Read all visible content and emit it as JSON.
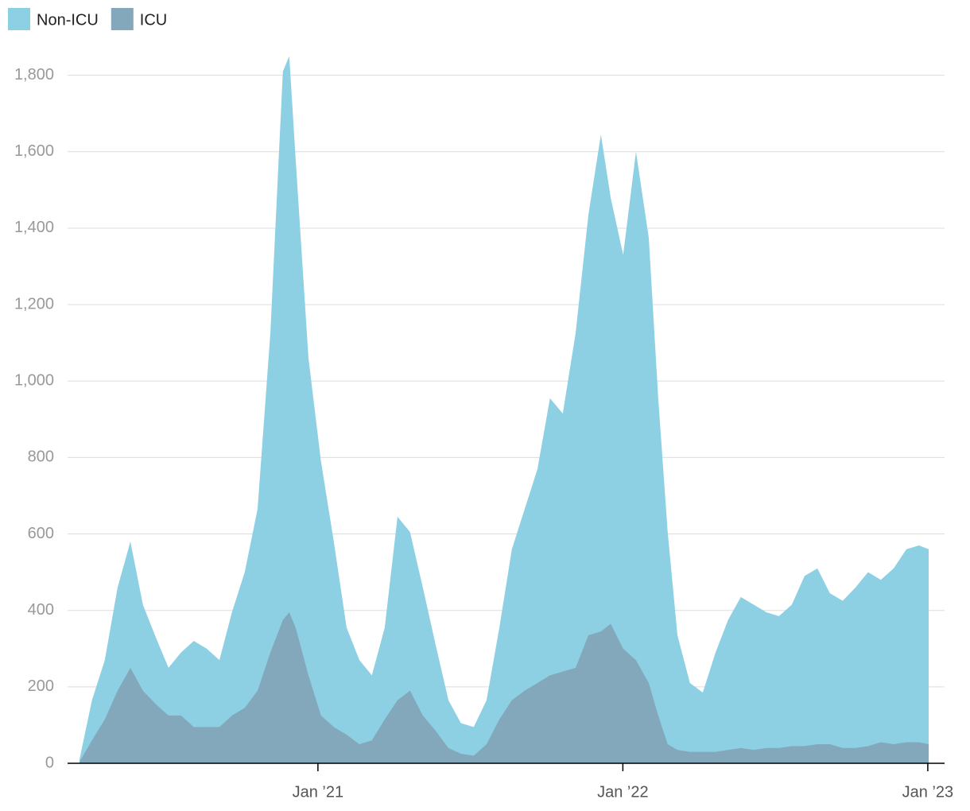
{
  "chart_data": {
    "type": "area",
    "x": [
      2020.218,
      2020.259,
      2020.301,
      2020.343,
      2020.385,
      2020.426,
      2020.468,
      2020.51,
      2020.551,
      2020.593,
      2020.635,
      2020.677,
      2020.718,
      2020.76,
      2020.802,
      2020.844,
      2020.885,
      2020.906,
      2020.927,
      2020.969,
      2021.01,
      2021.052,
      2021.094,
      2021.136,
      2021.177,
      2021.219,
      2021.261,
      2021.302,
      2021.344,
      2021.386,
      2021.428,
      2021.469,
      2021.511,
      2021.553,
      2021.595,
      2021.636,
      2021.678,
      2021.72,
      2021.761,
      2021.803,
      2021.845,
      2021.887,
      2021.928,
      2021.96,
      2022.001,
      2022.043,
      2022.085,
      2022.116,
      2022.147,
      2022.179,
      2022.22,
      2022.262,
      2022.304,
      2022.345,
      2022.387,
      2022.429,
      2022.471,
      2022.512,
      2022.554,
      2022.596,
      2022.638,
      2022.679,
      2022.721,
      2022.763,
      2022.804,
      2022.846,
      2022.888,
      2022.93,
      2022.971,
      2023.003
    ],
    "series": [
      {
        "name": "Non-ICU",
        "color": "#8dd0e4",
        "values": [
          10,
          165,
          270,
          460,
          580,
          415,
          330,
          250,
          290,
          320,
          300,
          270,
          395,
          500,
          665,
          1125,
          1810,
          1850,
          1580,
          1060,
          790,
          580,
          355,
          270,
          230,
          355,
          645,
          605,
          460,
          310,
          165,
          105,
          95,
          165,
          355,
          560,
          665,
          770,
          955,
          915,
          1125,
          1435,
          1645,
          1480,
          1330,
          1600,
          1375,
          955,
          605,
          335,
          210,
          185,
          290,
          375,
          435,
          415,
          395,
          385,
          415,
          490,
          510,
          445,
          425,
          460,
          500,
          480,
          510,
          560,
          570,
          560
        ]
      },
      {
        "name": "ICU",
        "color": "#84a8bb",
        "values": [
          4,
          60,
          115,
          190,
          250,
          190,
          155,
          125,
          125,
          95,
          95,
          95,
          125,
          145,
          190,
          290,
          375,
          395,
          355,
          230,
          125,
          95,
          75,
          50,
          60,
          115,
          165,
          190,
          125,
          85,
          40,
          25,
          20,
          50,
          115,
          165,
          190,
          210,
          230,
          240,
          250,
          335,
          345,
          365,
          300,
          270,
          210,
          125,
          50,
          35,
          30,
          30,
          30,
          35,
          40,
          35,
          40,
          40,
          45,
          45,
          50,
          50,
          40,
          40,
          45,
          55,
          50,
          55,
          55,
          50
        ]
      }
    ],
    "xlim": [
      2020.179,
      2023.055
    ],
    "xticks": [
      {
        "value": 2021,
        "label": "Jan ’21"
      },
      {
        "value": 2022,
        "label": "Jan ’22"
      },
      {
        "value": 2023,
        "label": "Jan ’23"
      }
    ],
    "ylim": [
      0,
      1870
    ],
    "yticks": [
      0,
      {
        "value": 200,
        "label": "200"
      },
      400,
      600,
      800,
      {
        "value": 1000,
        "label": "1,000"
      },
      {
        "value": 1200,
        "label": "1,200"
      },
      {
        "value": 1400,
        "label": "1,400"
      },
      {
        "value": 1600,
        "label": "1,600"
      },
      {
        "value": 1800,
        "label": "1,800"
      }
    ],
    "grid": true
  }
}
